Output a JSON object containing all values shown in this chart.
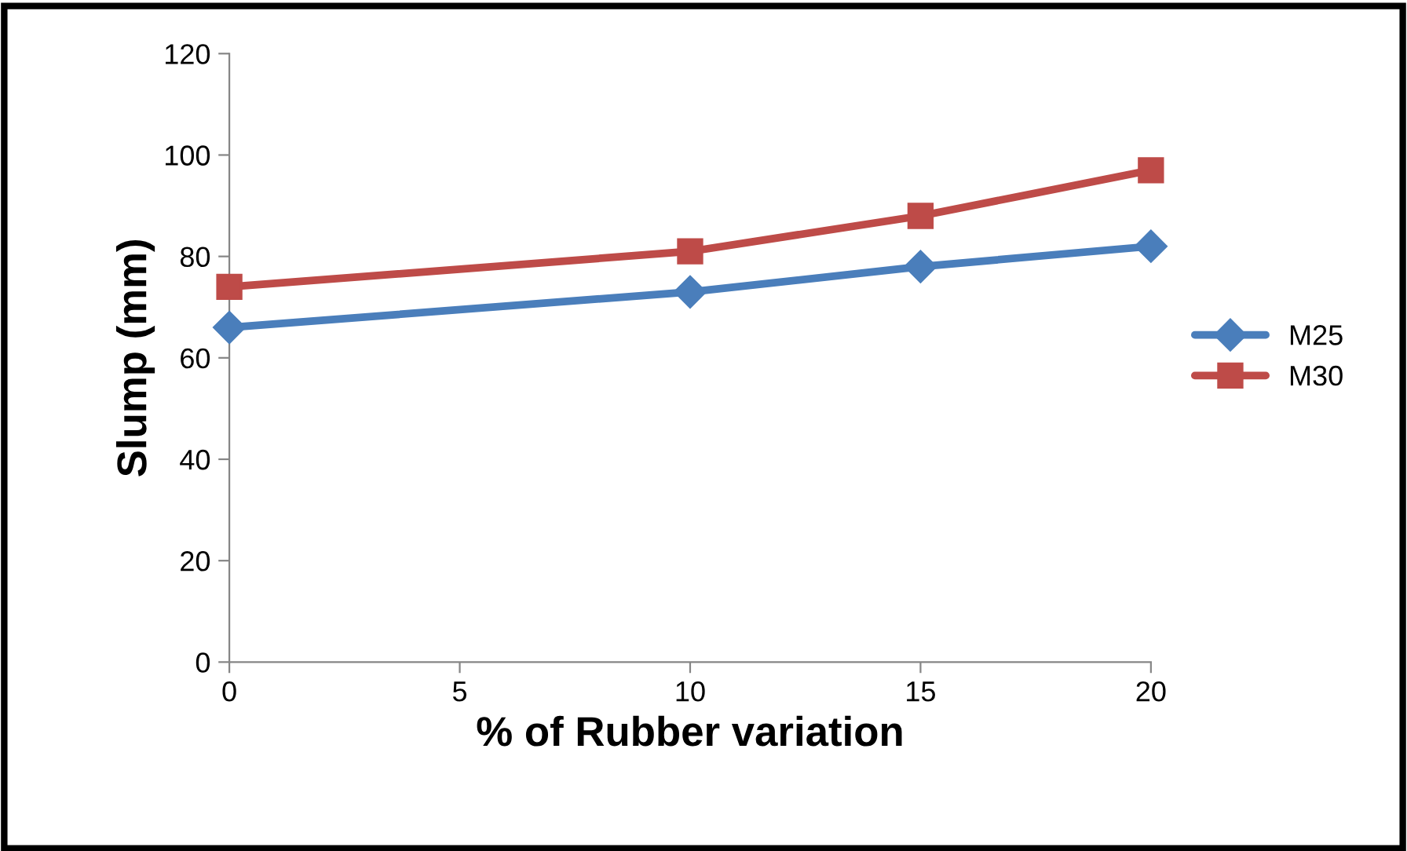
{
  "chart_data": {
    "type": "line",
    "xlabel": "% of Rubber variation",
    "ylabel": "Slump (mm)",
    "x": [
      0,
      10,
      15,
      20
    ],
    "series": [
      {
        "name": "M25",
        "color": "#4a7ebb",
        "values": [
          66,
          73,
          78,
          82
        ],
        "marker": "diamond"
      },
      {
        "name": "M30",
        "color": "#be4b48",
        "values": [
          74,
          81,
          88,
          97
        ],
        "marker": "square"
      }
    ],
    "xlim": [
      0,
      20
    ],
    "xticks": [
      0,
      5,
      10,
      15,
      20
    ],
    "ylim": [
      0,
      120
    ],
    "yticks": [
      0,
      20,
      40,
      60,
      80,
      100,
      120
    ],
    "grid": false,
    "legend": "right",
    "line_style": "solid"
  }
}
